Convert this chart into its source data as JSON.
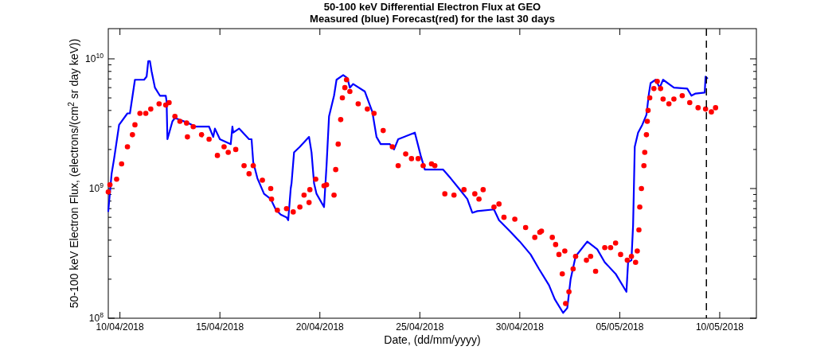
{
  "chart_data": {
    "type": "line",
    "title": "50-100 keV Differential Electron Flux at GEO",
    "subtitle": "Measured (blue) Forecast(red) for the last 30 days",
    "xlabel": "Date, (dd/mm/yyyy)",
    "ylabel": "50-100 keV Electron Flux, (electrons/(cm$^{2}$ sr day keV))",
    "log": true,
    "grid": false,
    "xlim": [
      "2018-04-09T10:00",
      "2018-05-11T20:00"
    ],
    "xticks": [
      {
        "value": "2018-04-10",
        "label": "10/04/2018"
      },
      {
        "value": "2018-04-15",
        "label": "15/04/2018"
      },
      {
        "value": "2018-04-20",
        "label": "20/04/2018"
      },
      {
        "value": "2018-04-25",
        "label": "25/04/2018"
      },
      {
        "value": "2018-04-30",
        "label": "30/04/2018"
      },
      {
        "value": "2018-05-05",
        "label": "05/05/2018"
      },
      {
        "value": "2018-05-10",
        "label": "10/05/2018"
      }
    ],
    "ylim": [
      100000000.0,
      17100000000.0
    ],
    "yticks": [
      {
        "value": 100000000.0,
        "label": "10$^{8}$"
      },
      {
        "value": 200000000.0,
        "label": null
      },
      {
        "value": 300000000.0,
        "label": null
      },
      {
        "value": 400000000.0,
        "label": null
      },
      {
        "value": 500000000.0,
        "label": null
      },
      {
        "value": 600000000.0,
        "label": null
      },
      {
        "value": 700000000.0,
        "label": null
      },
      {
        "value": 800000000.0,
        "label": null
      },
      {
        "value": 900000000.0,
        "label": null
      },
      {
        "value": 1000000000.0,
        "label": "10$^{9}$"
      },
      {
        "value": 2000000000.0,
        "label": null
      },
      {
        "value": 3000000000.0,
        "label": null
      },
      {
        "value": 4000000000.0,
        "label": null
      },
      {
        "value": 5000000000.0,
        "label": null
      },
      {
        "value": 6000000000.0,
        "label": null
      },
      {
        "value": 7000000000.0,
        "label": null
      },
      {
        "value": 8000000000.0,
        "label": null
      },
      {
        "value": 9000000000.0,
        "label": null
      },
      {
        "value": 10000000000.0,
        "label": "10$^{10}$"
      }
    ],
    "ref_lines": [
      {
        "axis": "x",
        "value": "2018-05-09T08:00",
        "color": "#000000",
        "line_style": "dashed"
      }
    ],
    "series": [
      {
        "color": "#0000ff",
        "line_style": "solid",
        "x": [
          "2018-04-09T10:00",
          "2018-04-09T14:00",
          "2018-04-09T17:00",
          "2018-04-09T23:00",
          "2018-04-10T09:00",
          "2018-04-10T12:00",
          "2018-04-10T18:00",
          "2018-04-11T05:00",
          "2018-04-11T08:00",
          "2018-04-11T10:00",
          "2018-04-11T12:00",
          "2018-04-11T14:00",
          "2018-04-11T18:00",
          "2018-04-12T00:00",
          "2018-04-12T07:00",
          "2018-04-12T08:00",
          "2018-04-12T09:00",
          "2018-04-12T15:00",
          "2018-04-12T18:00",
          "2018-04-13T10:00",
          "2018-04-13T19:00",
          "2018-04-14T11:00",
          "2018-04-14T16:00",
          "2018-04-14T18:00",
          "2018-04-15T00:00",
          "2018-04-15T13:00",
          "2018-04-15T15:00",
          "2018-04-15T16:00",
          "2018-04-15T23:00",
          "2018-04-16T11:00",
          "2018-04-16T14:00",
          "2018-04-16T16:00",
          "2018-04-16T21:00",
          "2018-04-17T05:00",
          "2018-04-17T13:00",
          "2018-04-17T19:00",
          "2018-04-18T01:00",
          "2018-04-18T08:00",
          "2018-04-18T10:00",
          "2018-04-18T13:00",
          "2018-04-18T14:00",
          "2018-04-18T17:00",
          "2018-04-19T00:00",
          "2018-04-19T11:00",
          "2018-04-19T14:00",
          "2018-04-19T17:00",
          "2018-04-19T20:00",
          "2018-04-20T05:00",
          "2018-04-20T08:00",
          "2018-04-20T11:00",
          "2018-04-20T17:00",
          "2018-04-20T20:00",
          "2018-04-21T04:00",
          "2018-04-21T09:00",
          "2018-04-21T12:00",
          "2018-04-21T16:00",
          "2018-04-22T06:00",
          "2018-04-22T15:00",
          "2018-04-22T20:00",
          "2018-04-23T01:00",
          "2018-04-23T12:00",
          "2018-04-23T17:00",
          "2018-04-23T22:00",
          "2018-04-24T18:00",
          "2018-04-25T01:00",
          "2018-04-25T06:00",
          "2018-04-26T04:00",
          "2018-04-26T13:00",
          "2018-04-26T23:00",
          "2018-04-27T09:00",
          "2018-04-27T15:00",
          "2018-04-27T21:00",
          "2018-04-28T17:00",
          "2018-04-28T23:00",
          "2018-04-29T12:00",
          "2018-04-30T00:00",
          "2018-04-30T13:00",
          "2018-04-30T23:00",
          "2018-05-01T11:00",
          "2018-05-01T18:00",
          "2018-05-02T04:00",
          "2018-05-02T09:00",
          "2018-05-02T13:00",
          "2018-05-02T19:00",
          "2018-05-03T09:00",
          "2018-05-03T21:00",
          "2018-05-04T06:00",
          "2018-05-04T19:00",
          "2018-05-05T08:00",
          "2018-05-05T10:00",
          "2018-05-05T14:00",
          "2018-05-05T16:00",
          "2018-05-05T18:00",
          "2018-05-05T22:00",
          "2018-05-06T03:00",
          "2018-05-06T08:00",
          "2018-05-06T11:00",
          "2018-05-06T13:00",
          "2018-05-06T19:00",
          "2018-05-07T00:00",
          "2018-05-07T04:00",
          "2018-05-07T17:00",
          "2018-05-08T09:00",
          "2018-05-08T14:00",
          "2018-05-08T19:00",
          "2018-05-09T06:00",
          "2018-05-09T07:00",
          "2018-05-09T09:00"
        ],
        "values": [
          670000000.0,
          1300000000.0,
          1700000000.0,
          3100000000.0,
          3800000000.0,
          3800000000.0,
          6900000000.0,
          6900000000.0,
          7300000000.0,
          9600000000.0,
          9600000000.0,
          8000000000.0,
          6000000000.0,
          5200000000.0,
          5200000000.0,
          4700000000.0,
          2400000000.0,
          3300000000.0,
          3500000000.0,
          3200000000.0,
          3000000000.0,
          3000000000.0,
          2500000000.0,
          2900000000.0,
          2400000000.0,
          2200000000.0,
          3000000000.0,
          2700000000.0,
          2900000000.0,
          2400000000.0,
          2400000000.0,
          1600000000.0,
          1200000000.0,
          910000000.0,
          830000000.0,
          690000000.0,
          630000000.0,
          600000000.0,
          570000000.0,
          1000000000.0,
          1100000000.0,
          1900000000.0,
          2100000000.0,
          2500000000.0,
          1900000000.0,
          1100000000.0,
          910000000.0,
          720000000.0,
          1500000000.0,
          3600000000.0,
          5200000000.0,
          6900000000.0,
          7500000000.0,
          7100000000.0,
          6000000000.0,
          6400000000.0,
          5600000000.0,
          3900000000.0,
          2500000000.0,
          2200000000.0,
          2200000000.0,
          2000000000.0,
          2400000000.0,
          2700000000.0,
          1800000000.0,
          1400000000.0,
          1400000000.0,
          1200000000.0,
          1000000000.0,
          830000000.0,
          650000000.0,
          670000000.0,
          690000000.0,
          570000000.0,
          470000000.0,
          390000000.0,
          310000000.0,
          240000000.0,
          180000000.0,
          140000000.0,
          110000000.0,
          120000000.0,
          200000000.0,
          300000000.0,
          390000000.0,
          340000000.0,
          270000000.0,
          220000000.0,
          160000000.0,
          270000000.0,
          280000000.0,
          520000000.0,
          2100000000.0,
          2700000000.0,
          3100000000.0,
          3700000000.0,
          5400000000.0,
          6500000000.0,
          6900000000.0,
          6000000000.0,
          6900000000.0,
          6000000000.0,
          5900000000.0,
          5200000000.0,
          5400000000.0,
          5500000000.0,
          7300000000.0,
          7100000000.0
        ]
      },
      {
        "type": "scatter",
        "color": "#ff0000",
        "marker": "circle",
        "x": [
          "2018-04-09T10:00",
          "2018-04-09T12:00",
          "2018-04-09T20:00",
          "2018-04-10T02:00",
          "2018-04-10T09:00",
          "2018-04-10T15:00",
          "2018-04-10T18:00",
          "2018-04-11T00:00",
          "2018-04-11T07:00",
          "2018-04-11T13:00",
          "2018-04-11T23:00",
          "2018-04-12T07:00",
          "2018-04-12T11:00",
          "2018-04-12T18:00",
          "2018-04-13T00:00",
          "2018-04-13T08:00",
          "2018-04-13T09:00",
          "2018-04-13T16:00",
          "2018-04-14T02:00",
          "2018-04-14T11:00",
          "2018-04-14T21:00",
          "2018-04-15T05:00",
          "2018-04-15T10:00",
          "2018-04-15T19:00",
          "2018-04-16T05:00",
          "2018-04-16T11:00",
          "2018-04-16T16:00",
          "2018-04-17T03:00",
          "2018-04-17T13:00",
          "2018-04-17T14:00",
          "2018-04-17T21:00",
          "2018-04-18T08:00",
          "2018-04-18T16:00",
          "2018-04-19T00:00",
          "2018-04-19T05:00",
          "2018-04-19T11:00",
          "2018-04-19T12:00",
          "2018-04-19T19:00",
          "2018-04-20T05:00",
          "2018-04-20T08:00",
          "2018-04-20T17:00",
          "2018-04-20T19:00",
          "2018-04-20T22:00",
          "2018-04-21T01:00",
          "2018-04-21T03:00",
          "2018-04-21T06:00",
          "2018-04-21T08:00",
          "2018-04-21T12:00",
          "2018-04-21T22:00",
          "2018-04-22T09:00",
          "2018-04-22T17:00",
          "2018-04-23T04:00",
          "2018-04-23T15:00",
          "2018-04-23T22:00",
          "2018-04-24T07:00",
          "2018-04-24T14:00",
          "2018-04-24T22:00",
          "2018-04-25T04:00",
          "2018-04-25T14:00",
          "2018-04-25T18:00",
          "2018-04-26T06:00",
          "2018-04-26T17:00",
          "2018-04-27T05:00",
          "2018-04-27T18:00",
          "2018-04-27T23:00",
          "2018-04-28T04:00",
          "2018-04-28T17:00",
          "2018-04-28T23:00",
          "2018-04-29T05:00",
          "2018-04-29T18:00",
          "2018-04-30T07:00",
          "2018-04-30T18:00",
          "2018-05-01T00:00",
          "2018-05-01T02:00",
          "2018-05-01T15:00",
          "2018-05-01T19:00",
          "2018-05-01T23:00",
          "2018-05-02T03:00",
          "2018-05-02T06:00",
          "2018-05-02T07:00",
          "2018-05-02T11:00",
          "2018-05-02T16:00",
          "2018-05-02T19:00",
          "2018-05-03T08:00",
          "2018-05-03T13:00",
          "2018-05-03T19:00",
          "2018-05-04T06:00",
          "2018-05-04T13:00",
          "2018-05-04T19:00",
          "2018-05-05T01:00",
          "2018-05-05T09:00",
          "2018-05-05T14:00",
          "2018-05-05T19:00",
          "2018-05-05T21:00",
          "2018-05-05T23:00",
          "2018-05-06T00:00",
          "2018-05-06T02:00",
          "2018-05-06T05:00",
          "2018-05-06T06:00",
          "2018-05-06T08:00",
          "2018-05-06T09:00",
          "2018-05-06T10:00",
          "2018-05-06T12:00",
          "2018-05-06T17:00",
          "2018-05-06T21:00",
          "2018-05-07T01:00",
          "2018-05-07T04:00",
          "2018-05-07T11:00",
          "2018-05-07T17:00",
          "2018-05-08T03:00",
          "2018-05-08T12:00",
          "2018-05-08T22:00",
          "2018-05-09T07:00",
          "2018-05-09T14:00",
          "2018-05-09T19:00"
        ],
        "values": [
          940000000.0,
          1070000000.0,
          1180000000.0,
          1550000000.0,
          2100000000.0,
          2600000000.0,
          3100000000.0,
          3800000000.0,
          3800000000.0,
          4100000000.0,
          4500000000.0,
          4400000000.0,
          4600000000.0,
          3600000000.0,
          3300000000.0,
          3200000000.0,
          2500000000.0,
          3000000000.0,
          2600000000.0,
          2400000000.0,
          1800000000.0,
          2100000000.0,
          1900000000.0,
          2000000000.0,
          1500000000.0,
          1300000000.0,
          1500000000.0,
          1160000000.0,
          1000000000.0,
          830000000.0,
          680000000.0,
          700000000.0,
          660000000.0,
          720000000.0,
          890000000.0,
          780000000.0,
          980000000.0,
          1180000000.0,
          1050000000.0,
          1070000000.0,
          890000000.0,
          1400000000.0,
          2200000000.0,
          3400000000.0,
          5000000000.0,
          6000000000.0,
          6900000000.0,
          5600000000.0,
          4500000000.0,
          4100000000.0,
          3800000000.0,
          2800000000.0,
          2100000000.0,
          1500000000.0,
          1850000000.0,
          1700000000.0,
          1700000000.0,
          1500000000.0,
          1550000000.0,
          1500000000.0,
          910000000.0,
          890000000.0,
          980000000.0,
          910000000.0,
          830000000.0,
          980000000.0,
          720000000.0,
          760000000.0,
          600000000.0,
          580000000.0,
          500000000.0,
          420000000.0,
          460000000.0,
          470000000.0,
          420000000.0,
          370000000.0,
          310000000.0,
          220000000.0,
          330000000.0,
          130000000.0,
          160000000.0,
          240000000.0,
          300000000.0,
          280000000.0,
          300000000.0,
          230000000.0,
          350000000.0,
          350000000.0,
          380000000.0,
          310000000.0,
          280000000.0,
          300000000.0,
          270000000.0,
          330000000.0,
          480000000.0,
          720000000.0,
          1000000000.0,
          1500000000.0,
          1900000000.0,
          2600000000.0,
          3300000000.0,
          4000000000.0,
          5000000000.0,
          5900000000.0,
          6700000000.0,
          5900000000.0,
          4900000000.0,
          4500000000.0,
          4900000000.0,
          5200000000.0,
          4600000000.0,
          4200000000.0,
          4100000000.0,
          3900000000.0,
          4200000000.0
        ]
      }
    ]
  }
}
